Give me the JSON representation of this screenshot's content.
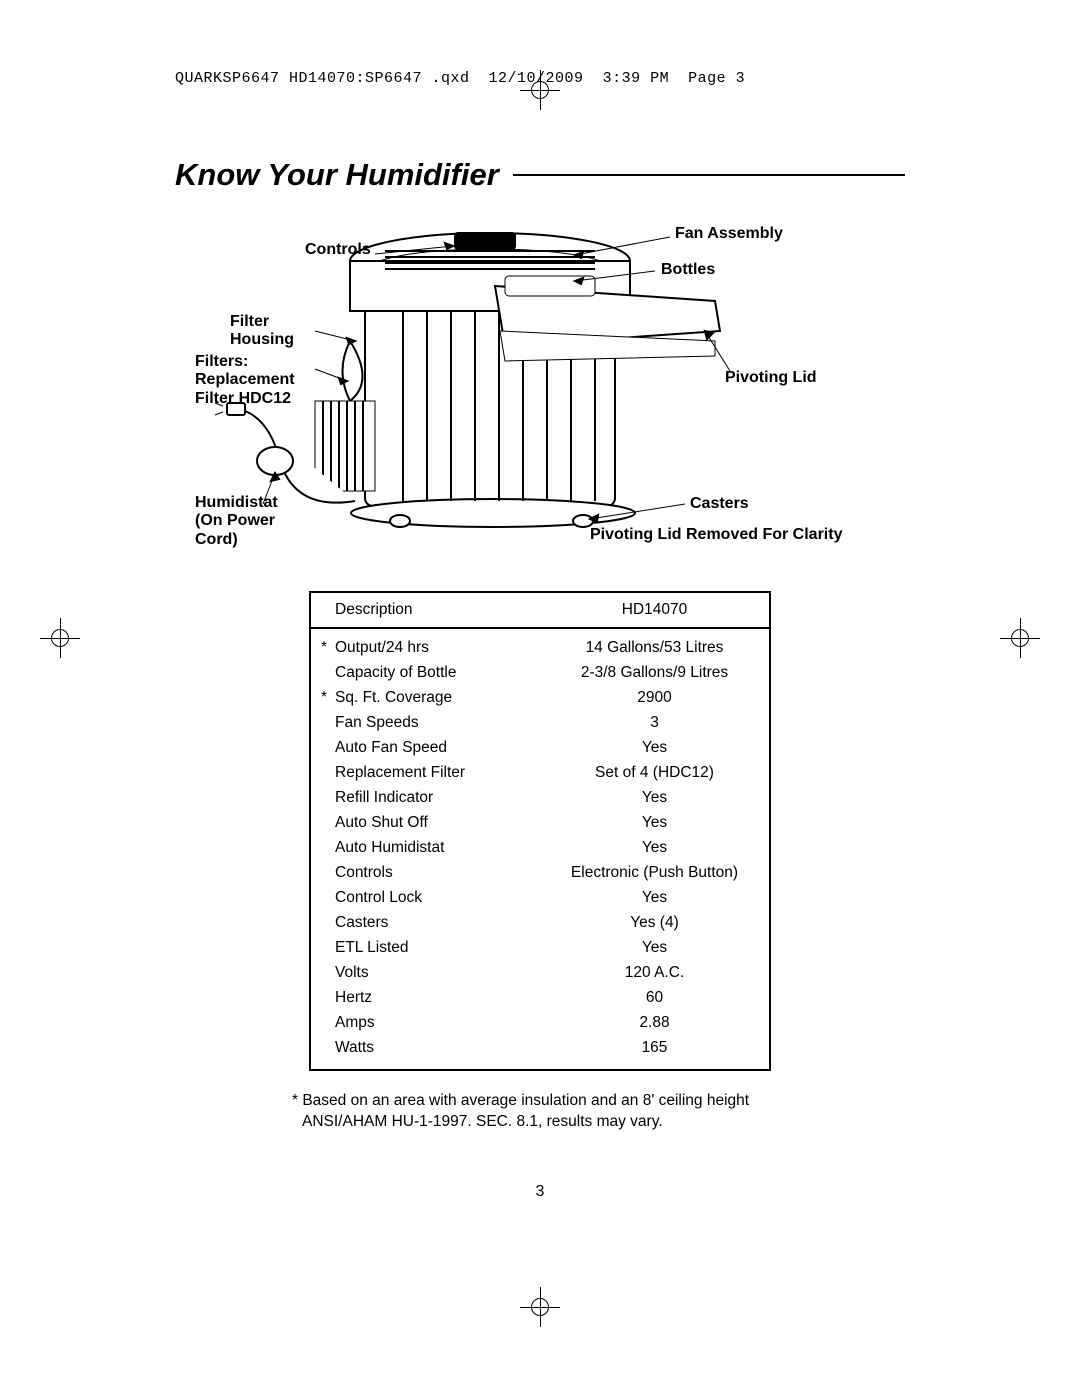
{
  "header_line": "QUARKSP6647 HD14070:SP6647 .qxd  12/10/2009  3:39 PM  Page 3",
  "title": "Know Your Humidifier",
  "diagram": {
    "labels": {
      "controls": "Controls",
      "filter_housing": "Filter\nHousing",
      "filters": "Filters:\nReplacement\nFilter HDC12",
      "humidistat": "Humidistat\n(On Power\nCord)",
      "fan_assembly": "Fan Assembly",
      "bottles": "Bottles",
      "pivoting_lid": "Pivoting Lid",
      "casters": "Casters",
      "caption": "Pivoting Lid Removed For Clarity"
    }
  },
  "spec_table": {
    "header": {
      "col1": "Description",
      "col2": "HD14070"
    },
    "rows": [
      {
        "desc": "Output/24 hrs",
        "star": true,
        "value": "14 Gallons/53 Litres"
      },
      {
        "desc": "Capacity of Bottle",
        "star": false,
        "value": "2-3/8 Gallons/9 Litres"
      },
      {
        "desc": "Sq. Ft. Coverage",
        "star": true,
        "value": "2900"
      },
      {
        "desc": "Fan Speeds",
        "star": false,
        "value": "3"
      },
      {
        "desc": "Auto Fan Speed",
        "star": false,
        "value": "Yes"
      },
      {
        "desc": "Replacement Filter",
        "star": false,
        "value": "Set of 4 (HDC12)"
      },
      {
        "desc": "Refill Indicator",
        "star": false,
        "value": "Yes"
      },
      {
        "desc": "Auto Shut Off",
        "star": false,
        "value": "Yes"
      },
      {
        "desc": "Auto Humidistat",
        "star": false,
        "value": "Yes"
      },
      {
        "desc": "Controls",
        "star": false,
        "value": "Electronic (Push Button)"
      },
      {
        "desc": "Control Lock",
        "star": false,
        "value": "Yes"
      },
      {
        "desc": "Casters",
        "star": false,
        "value": "Yes (4)"
      },
      {
        "desc": "ETL Listed",
        "star": false,
        "value": "Yes"
      },
      {
        "desc": "Volts",
        "star": false,
        "value": "120 A.C."
      },
      {
        "desc": "Hertz",
        "star": false,
        "value": "60"
      },
      {
        "desc": "Amps",
        "star": false,
        "value": "2.88"
      },
      {
        "desc": "Watts",
        "star": false,
        "value": "165"
      }
    ]
  },
  "footnote": "* Based on an area with average insulation and an 8' ceiling height ANSI/AHAM HU-1-1997. SEC. 8.1, results may vary.",
  "page_number": "3",
  "colors": {
    "text": "#000000",
    "background": "#ffffff"
  }
}
